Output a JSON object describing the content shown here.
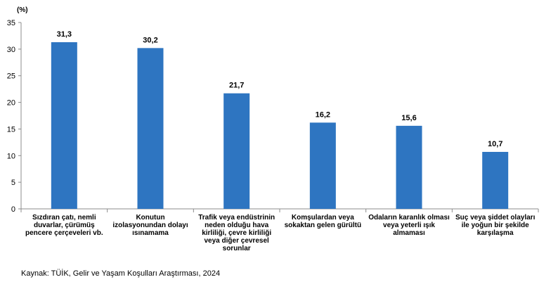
{
  "chart_data": {
    "type": "bar",
    "unit": "(%)",
    "categories": [
      "Sızdıran çatı, nemli duvarlar, çürümüş pencere çerçeveleri vb.",
      "Konutun izolasyonundan dolayı ısınamama",
      "Trafik veya endüstrinin neden olduğu hava kirliliği, çevre kirliliği veya diğer çevresel sorunlar",
      "Komşulardan veya sokaktan gelen gürültü",
      "Odaların karanlık olması veya yeterli ışık almaması",
      "Suç veya şiddet olayları ile yoğun bir şekilde karşılaşma"
    ],
    "values": [
      31.3,
      30.2,
      21.7,
      16.2,
      15.6,
      10.7
    ],
    "value_labels": [
      "31,3",
      "30,2",
      "21,7",
      "16,2",
      "15,6",
      "10,7"
    ],
    "yticks": [
      0,
      5,
      10,
      15,
      20,
      25,
      30,
      35
    ],
    "ylim": [
      0,
      35
    ],
    "title": "",
    "xlabel": "",
    "ylabel": "(%)",
    "bar_color": "#2E75C1",
    "grid": false
  },
  "source": "Kaynak: TÜİK, Gelir ve Yaşam Koşulları Araştırması, 2024"
}
